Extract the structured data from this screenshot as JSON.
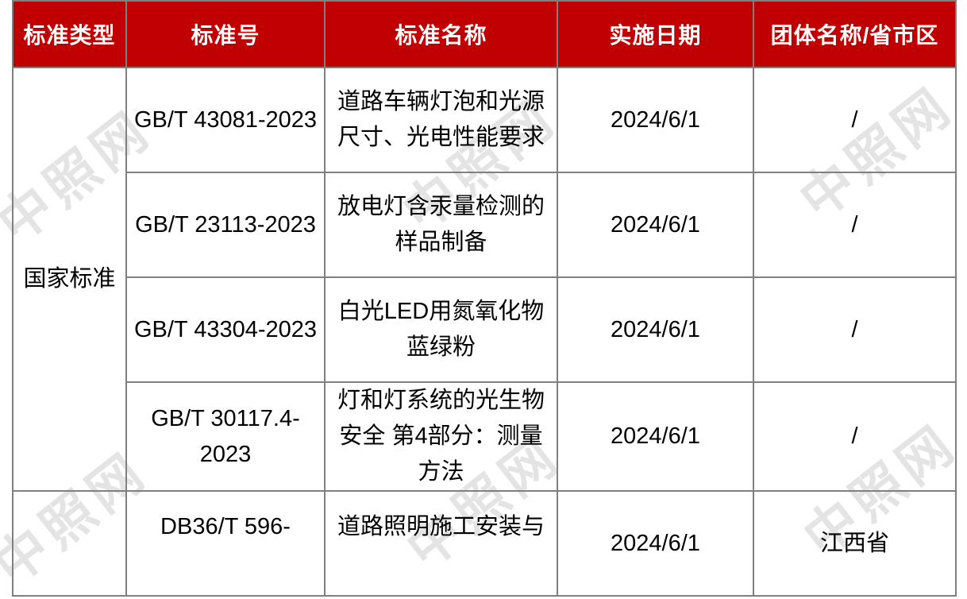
{
  "watermark": {
    "text": "中照网",
    "color": "#e4e4e4"
  },
  "colors": {
    "header_bg": "#c00000",
    "header_text": "#ffffff",
    "border": "#808080",
    "body_text": "#000000"
  },
  "table": {
    "headers": [
      "标准类型",
      "标准号",
      "标准名称",
      "实施日期",
      "团体名称/省市区"
    ],
    "rows": [
      {
        "category": "国家标准",
        "number": "GB/T 43081-2023",
        "name": "道路车辆灯泡和光源尺寸、光电性能要求",
        "date": "2024/6/1",
        "org": "/"
      },
      {
        "number": "GB/T 23113-2023",
        "name": "放电灯含汞量检测的样品制备",
        "date": "2024/6/1",
        "org": "/"
      },
      {
        "number": "GB/T 43304-2023",
        "name": "白光LED用氮氧化物蓝绿粉",
        "date": "2024/6/1",
        "org": "/"
      },
      {
        "number": "GB/T 30117.4-2023",
        "name": "灯和灯系统的光生物安全 第4部分：测量方法",
        "date": "2024/6/1",
        "org": "/"
      },
      {
        "category": "",
        "number": "DB36/T 596-",
        "name": "道路照明施工安装与",
        "date": "2024/6/1",
        "org": "江西省"
      }
    ]
  }
}
